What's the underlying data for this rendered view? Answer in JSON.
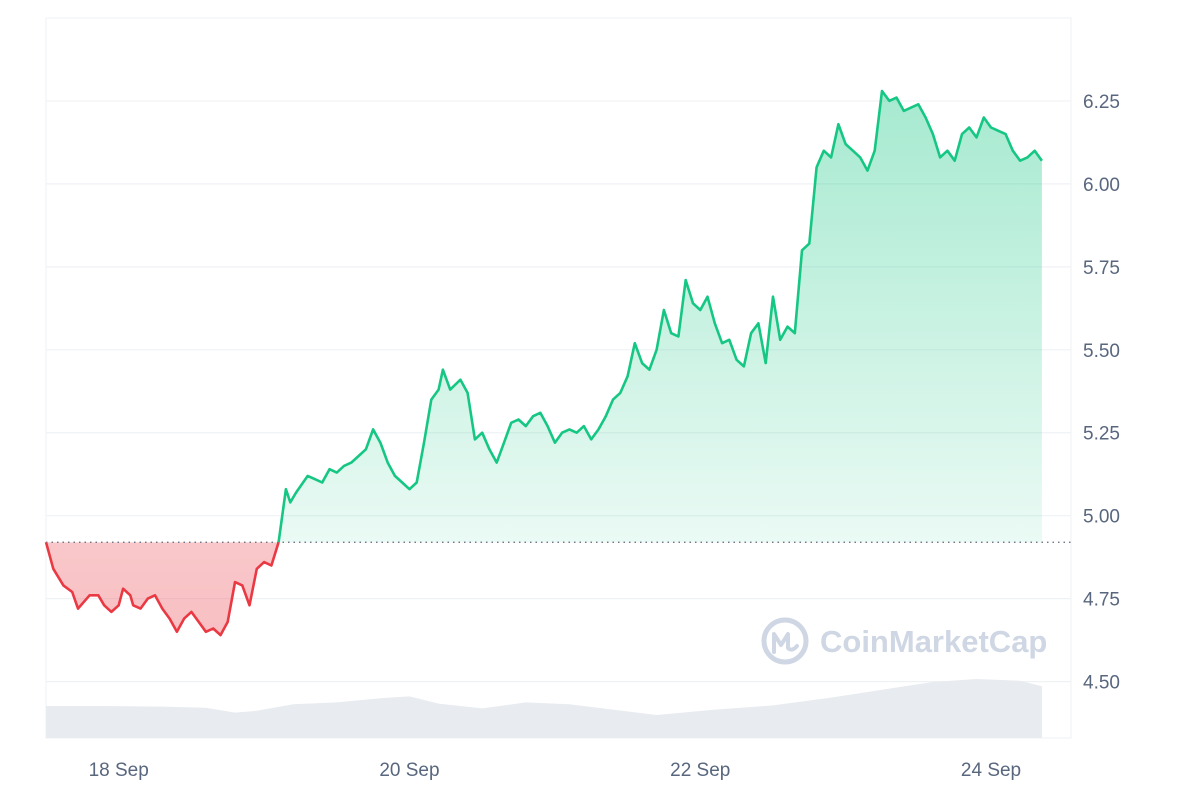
{
  "chart_data": {
    "type": "area",
    "baseline": 4.92,
    "ylim": [
      4.33,
      6.5
    ],
    "xlim": [
      0,
      7.05
    ],
    "yticks": [
      4.5,
      4.75,
      5.0,
      5.25,
      5.5,
      5.75,
      6.0,
      6.25
    ],
    "ytick_labels": [
      "4.50",
      "4.75",
      "5.00",
      "5.25",
      "5.50",
      "5.75",
      "6.00",
      "6.25"
    ],
    "xticks": [
      {
        "pos": 0.5,
        "label": "18 Sep"
      },
      {
        "pos": 2.5,
        "label": "20 Sep"
      },
      {
        "pos": 4.5,
        "label": "22 Sep"
      },
      {
        "pos": 6.5,
        "label": "24 Sep"
      }
    ],
    "grid": true,
    "colors": {
      "up": "#16c784",
      "down": "#ea3943",
      "grid": "#eff2f5",
      "volume": "#e8ebef",
      "baseline": "#58667e"
    },
    "price": [
      [
        0.0,
        4.92
      ],
      [
        0.05,
        4.84
      ],
      [
        0.12,
        4.79
      ],
      [
        0.18,
        4.77
      ],
      [
        0.22,
        4.72
      ],
      [
        0.3,
        4.76
      ],
      [
        0.36,
        4.76
      ],
      [
        0.4,
        4.73
      ],
      [
        0.45,
        4.71
      ],
      [
        0.5,
        4.73
      ],
      [
        0.53,
        4.78
      ],
      [
        0.58,
        4.76
      ],
      [
        0.6,
        4.73
      ],
      [
        0.65,
        4.72
      ],
      [
        0.7,
        4.75
      ],
      [
        0.75,
        4.76
      ],
      [
        0.8,
        4.72
      ],
      [
        0.85,
        4.69
      ],
      [
        0.9,
        4.65
      ],
      [
        0.95,
        4.69
      ],
      [
        1.0,
        4.71
      ],
      [
        1.05,
        4.68
      ],
      [
        1.1,
        4.65
      ],
      [
        1.15,
        4.66
      ],
      [
        1.2,
        4.64
      ],
      [
        1.25,
        4.68
      ],
      [
        1.3,
        4.8
      ],
      [
        1.35,
        4.79
      ],
      [
        1.4,
        4.73
      ],
      [
        1.45,
        4.84
      ],
      [
        1.5,
        4.86
      ],
      [
        1.55,
        4.85
      ],
      [
        1.6,
        4.92
      ],
      [
        1.65,
        5.08
      ],
      [
        1.68,
        5.04
      ],
      [
        1.72,
        5.07
      ],
      [
        1.8,
        5.12
      ],
      [
        1.85,
        5.11
      ],
      [
        1.9,
        5.1
      ],
      [
        1.95,
        5.14
      ],
      [
        2.0,
        5.13
      ],
      [
        2.05,
        5.15
      ],
      [
        2.1,
        5.16
      ],
      [
        2.15,
        5.18
      ],
      [
        2.2,
        5.2
      ],
      [
        2.25,
        5.26
      ],
      [
        2.3,
        5.22
      ],
      [
        2.35,
        5.16
      ],
      [
        2.4,
        5.12
      ],
      [
        2.45,
        5.1
      ],
      [
        2.5,
        5.08
      ],
      [
        2.55,
        5.1
      ],
      [
        2.6,
        5.22
      ],
      [
        2.65,
        5.35
      ],
      [
        2.7,
        5.38
      ],
      [
        2.73,
        5.44
      ],
      [
        2.78,
        5.38
      ],
      [
        2.85,
        5.41
      ],
      [
        2.9,
        5.37
      ],
      [
        2.95,
        5.23
      ],
      [
        3.0,
        5.25
      ],
      [
        3.05,
        5.2
      ],
      [
        3.1,
        5.16
      ],
      [
        3.15,
        5.22
      ],
      [
        3.2,
        5.28
      ],
      [
        3.25,
        5.29
      ],
      [
        3.3,
        5.27
      ],
      [
        3.35,
        5.3
      ],
      [
        3.4,
        5.31
      ],
      [
        3.45,
        5.27
      ],
      [
        3.5,
        5.22
      ],
      [
        3.55,
        5.25
      ],
      [
        3.6,
        5.26
      ],
      [
        3.65,
        5.25
      ],
      [
        3.7,
        5.27
      ],
      [
        3.75,
        5.23
      ],
      [
        3.8,
        5.26
      ],
      [
        3.85,
        5.3
      ],
      [
        3.9,
        5.35
      ],
      [
        3.95,
        5.37
      ],
      [
        4.0,
        5.42
      ],
      [
        4.05,
        5.52
      ],
      [
        4.1,
        5.46
      ],
      [
        4.15,
        5.44
      ],
      [
        4.2,
        5.5
      ],
      [
        4.25,
        5.62
      ],
      [
        4.3,
        5.55
      ],
      [
        4.35,
        5.54
      ],
      [
        4.4,
        5.71
      ],
      [
        4.45,
        5.64
      ],
      [
        4.5,
        5.62
      ],
      [
        4.55,
        5.66
      ],
      [
        4.6,
        5.58
      ],
      [
        4.65,
        5.52
      ],
      [
        4.7,
        5.53
      ],
      [
        4.75,
        5.47
      ],
      [
        4.8,
        5.45
      ],
      [
        4.85,
        5.55
      ],
      [
        4.9,
        5.58
      ],
      [
        4.95,
        5.46
      ],
      [
        5.0,
        5.66
      ],
      [
        5.05,
        5.53
      ],
      [
        5.1,
        5.57
      ],
      [
        5.15,
        5.55
      ],
      [
        5.2,
        5.8
      ],
      [
        5.25,
        5.82
      ],
      [
        5.3,
        6.05
      ],
      [
        5.35,
        6.1
      ],
      [
        5.4,
        6.08
      ],
      [
        5.45,
        6.18
      ],
      [
        5.5,
        6.12
      ],
      [
        5.55,
        6.1
      ],
      [
        5.6,
        6.08
      ],
      [
        5.65,
        6.04
      ],
      [
        5.7,
        6.1
      ],
      [
        5.75,
        6.28
      ],
      [
        5.8,
        6.25
      ],
      [
        5.85,
        6.26
      ],
      [
        5.9,
        6.22
      ],
      [
        5.95,
        6.23
      ],
      [
        6.0,
        6.24
      ],
      [
        6.05,
        6.2
      ],
      [
        6.1,
        6.15
      ],
      [
        6.15,
        6.08
      ],
      [
        6.2,
        6.1
      ],
      [
        6.25,
        6.07
      ],
      [
        6.3,
        6.15
      ],
      [
        6.35,
        6.17
      ],
      [
        6.4,
        6.14
      ],
      [
        6.45,
        6.2
      ],
      [
        6.5,
        6.17
      ],
      [
        6.55,
        6.16
      ],
      [
        6.6,
        6.15
      ],
      [
        6.65,
        6.1
      ],
      [
        6.7,
        6.07
      ],
      [
        6.75,
        6.08
      ],
      [
        6.8,
        6.1
      ],
      [
        6.85,
        6.07
      ]
    ],
    "volume": [
      [
        0.0,
        0.5
      ],
      [
        0.4,
        0.5
      ],
      [
        0.8,
        0.49
      ],
      [
        1.1,
        0.47
      ],
      [
        1.3,
        0.39
      ],
      [
        1.45,
        0.42
      ],
      [
        1.7,
        0.53
      ],
      [
        2.0,
        0.56
      ],
      [
        2.3,
        0.63
      ],
      [
        2.5,
        0.66
      ],
      [
        2.7,
        0.54
      ],
      [
        3.0,
        0.46
      ],
      [
        3.3,
        0.56
      ],
      [
        3.6,
        0.53
      ],
      [
        3.9,
        0.44
      ],
      [
        4.2,
        0.35
      ],
      [
        4.6,
        0.44
      ],
      [
        5.0,
        0.51
      ],
      [
        5.4,
        0.64
      ],
      [
        5.8,
        0.79
      ],
      [
        6.1,
        0.9
      ],
      [
        6.4,
        0.95
      ],
      [
        6.7,
        0.92
      ],
      [
        6.85,
        0.83
      ]
    ]
  },
  "watermark": {
    "text": "CoinMarketCap",
    "icon": "coinmarketcap-logo-icon"
  }
}
